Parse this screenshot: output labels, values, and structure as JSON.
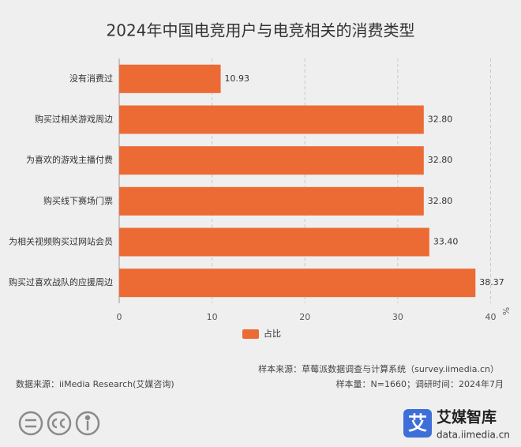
{
  "chart_data": {
    "type": "bar",
    "orientation": "horizontal",
    "title": "2024年中国电竞用户与电竞相关的消费类型",
    "categories": [
      "没有消费过",
      "购买过相关游戏周边",
      "为喜欢的游戏主播付费",
      "购买线下赛场门票",
      "为相关视频购买过网站会员",
      "购买过喜欢战队的应援周边"
    ],
    "series": [
      {
        "name": "占比",
        "color": "#ec6b35",
        "values": [
          10.93,
          32.8,
          32.8,
          32.8,
          33.4,
          38.37
        ],
        "value_labels": [
          "10.93",
          "32.80",
          "32.80",
          "32.80",
          "33.40",
          "38.37"
        ]
      }
    ],
    "xlim": [
      0,
      42
    ],
    "xticks": [
      0,
      10,
      20,
      30,
      40
    ],
    "x_unit": "%",
    "grid": true,
    "legend": "bottom"
  },
  "footer": {
    "sample_source": "样本来源：草莓派数据调查与计算系统（survey.iimedia.cn）",
    "data_source": "数据来源：iiMedia Research(艾媒咨询)",
    "sample_size": "样本量：N=1660；调研时间：2024年7月",
    "brand_icon": "艾",
    "brand_name": "艾媒智库",
    "brand_url": "data.iimedia.cn"
  }
}
